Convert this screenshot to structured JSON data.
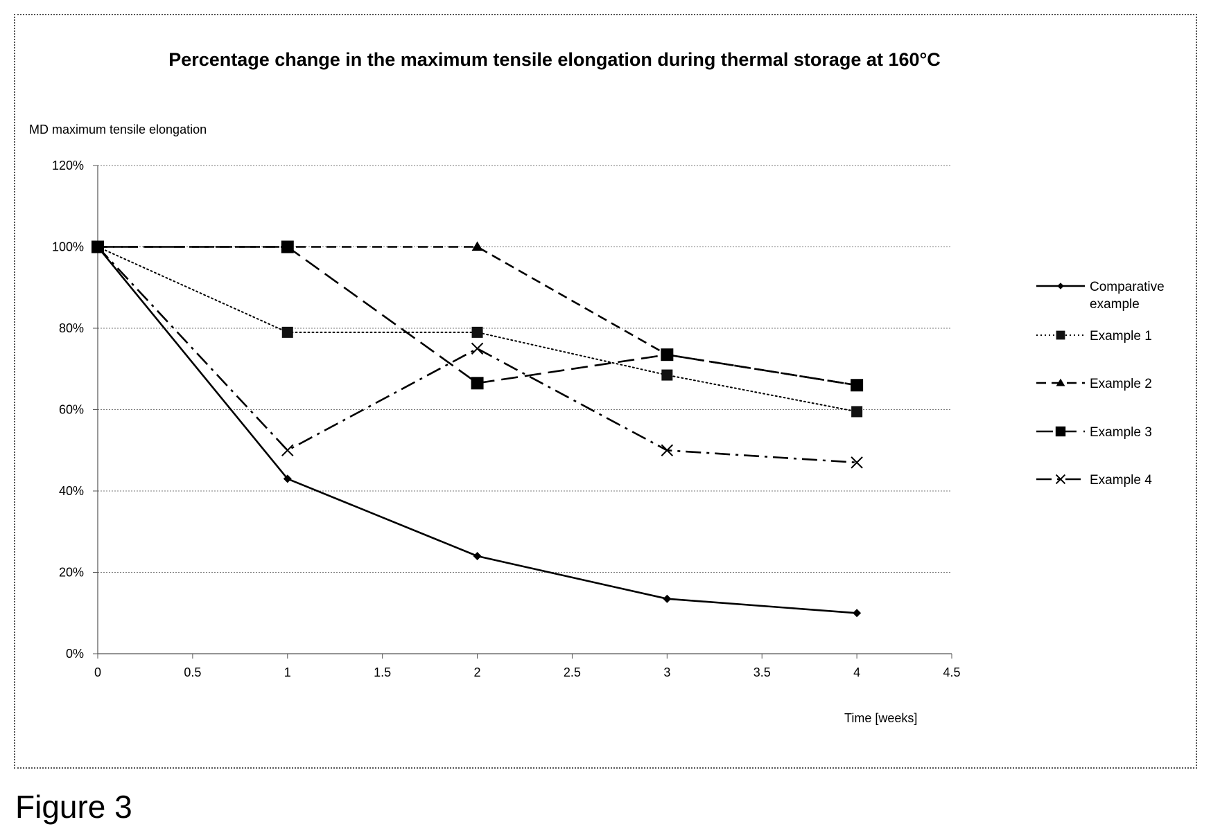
{
  "figure_label": "Figure 3",
  "chart_data": {
    "type": "line",
    "title": "Percentage change in the maximum tensile elongation during thermal storage at 160°C",
    "ylabel": "MD maximum tensile elongation",
    "xlabel": "Time [weeks]",
    "xlim": [
      0,
      4.5
    ],
    "ylim": [
      0,
      120
    ],
    "x_ticks": [
      "0",
      "0.5",
      "1",
      "1.5",
      "2",
      "2.5",
      "3",
      "3.5",
      "4",
      "4.5"
    ],
    "y_ticks": [
      "0%",
      "20%",
      "40%",
      "60%",
      "80%",
      "100%",
      "120%"
    ],
    "grid": "horizontal",
    "legend_position": "right",
    "x": [
      0,
      1,
      2,
      3,
      4
    ],
    "series": [
      {
        "name": "Comparative example",
        "values": [
          100,
          43,
          24,
          13.5,
          10
        ],
        "dash": "solid",
        "marker": "diamond",
        "legend_lines": [
          "Comparative",
          "example"
        ]
      },
      {
        "name": "Example 1",
        "values": [
          100,
          79,
          79,
          68.5,
          59.5
        ],
        "dash": "dotted",
        "marker": "square-small",
        "legend_lines": [
          "Example 1"
        ]
      },
      {
        "name": "Example 2",
        "values": [
          100,
          100,
          100,
          73.5,
          66
        ],
        "dash": "dashed",
        "marker": "triangle",
        "legend_lines": [
          "Example 2"
        ]
      },
      {
        "name": "Example 3",
        "values": [
          100,
          100,
          66.5,
          73.5,
          66
        ],
        "dash": "longdash",
        "marker": "square",
        "legend_lines": [
          "Example 3"
        ]
      },
      {
        "name": "Example 4",
        "values": [
          100,
          50,
          75,
          50,
          47
        ],
        "dash": "dashdot",
        "marker": "x",
        "legend_lines": [
          "Example 4"
        ]
      }
    ]
  }
}
